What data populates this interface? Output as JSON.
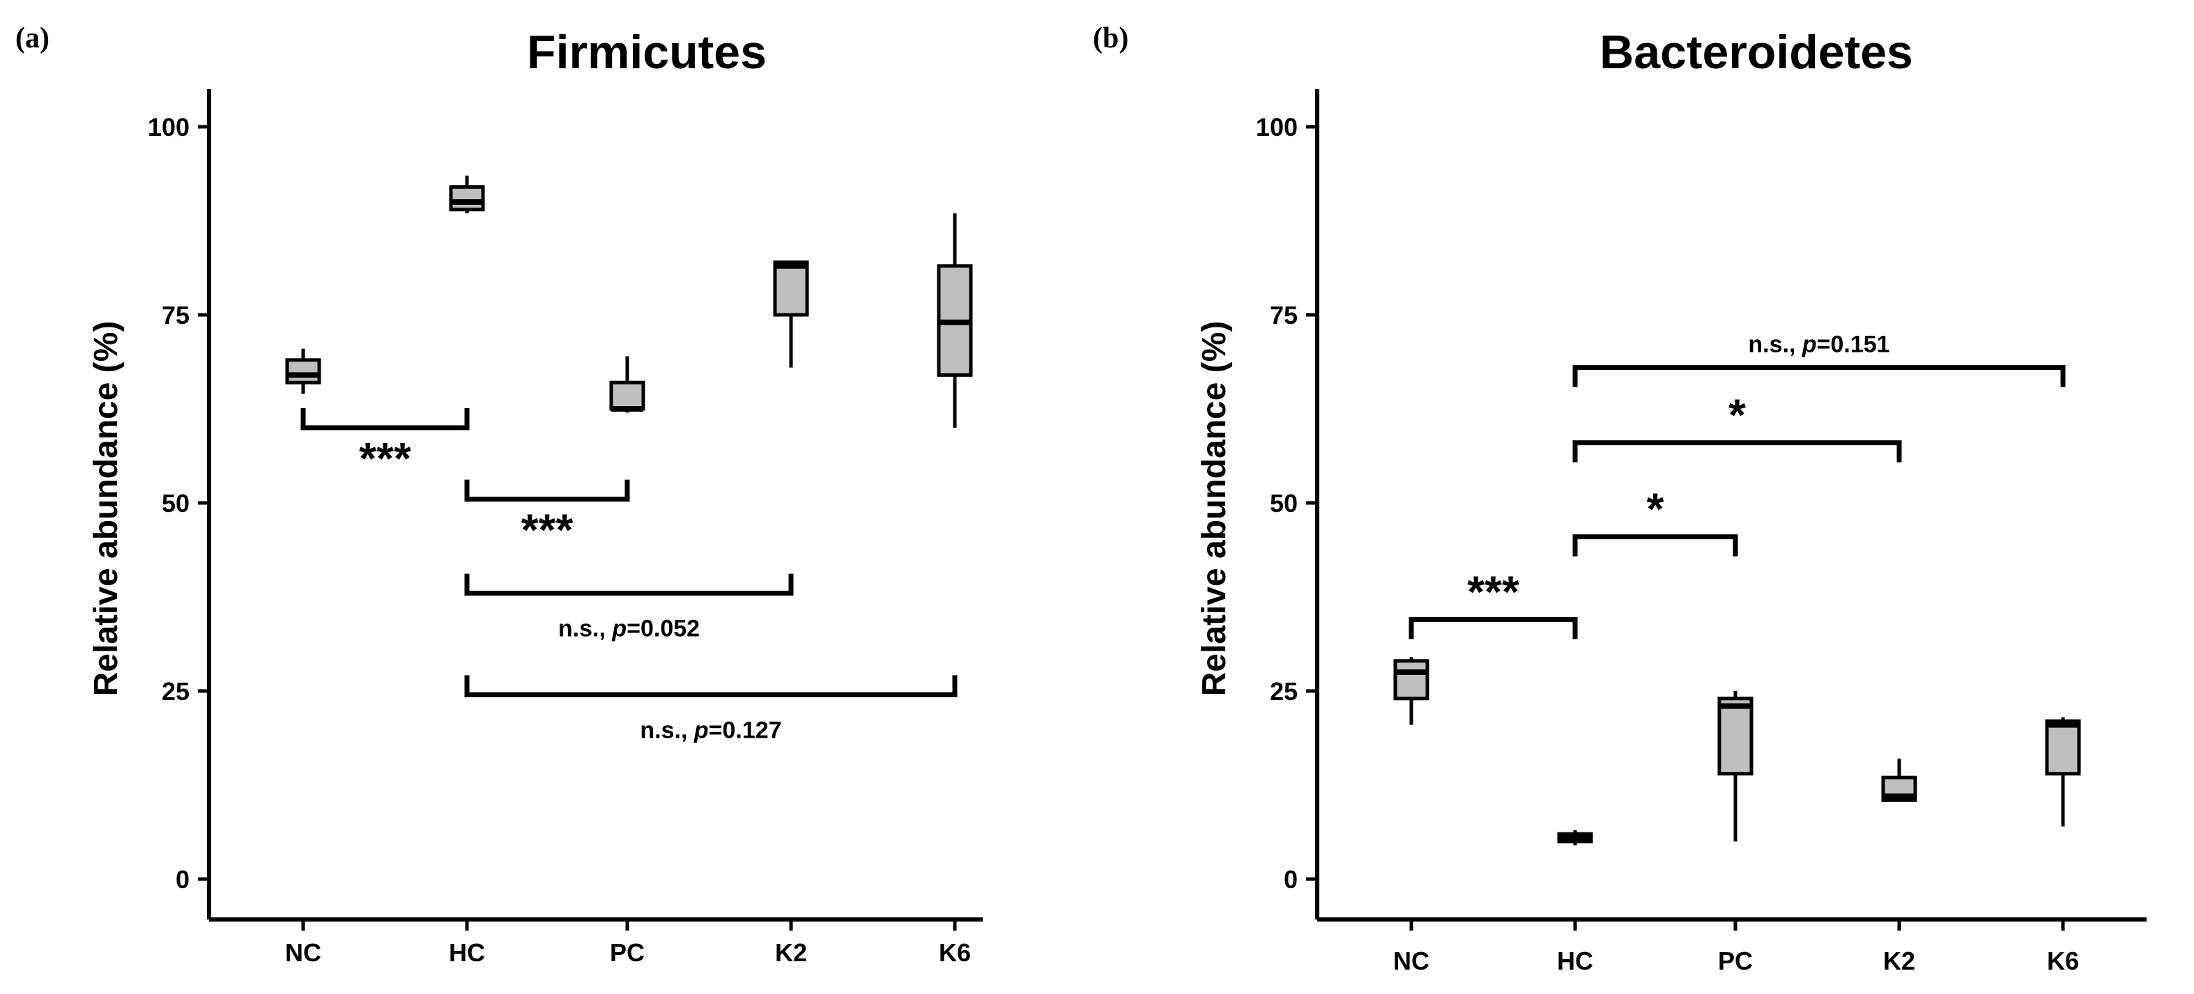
{
  "chart_data": [
    {
      "type": "box",
      "panel_label": "(a)",
      "title": "Firmicutes",
      "xlabel": "",
      "ylabel": "Relative abundance (%)",
      "ylim": [
        -5,
        105
      ],
      "yticks": [
        0,
        25,
        50,
        75,
        100
      ],
      "categories": [
        "NC",
        "HC",
        "PC",
        "K2",
        "K6"
      ],
      "boxes": [
        {
          "min": 64.5,
          "q1": 66,
          "median": 67,
          "q3": 69,
          "max": 70.5
        },
        {
          "min": 88.5,
          "q1": 89,
          "median": 90,
          "q3": 92,
          "max": 93.5
        },
        {
          "min": 62,
          "q1": 62.5,
          "median": 62.5,
          "q3": 66,
          "max": 69.5
        },
        {
          "min": 68,
          "q1": 75,
          "median": 81.5,
          "q3": 82,
          "max": 82
        },
        {
          "min": 60,
          "q1": 67,
          "median": 74,
          "q3": 81.5,
          "max": 88.5
        }
      ],
      "comparisons": [
        {
          "from": 0,
          "to": 1,
          "y": 60,
          "label": "***",
          "text": "***",
          "label_pos": "below"
        },
        {
          "from": 1,
          "to": 2,
          "y": 50.5,
          "label": "***",
          "text": "***",
          "label_pos": "below"
        },
        {
          "from": 1,
          "to": 3,
          "y": 38,
          "label": "n.s., p=0.052",
          "text": "n.s., ",
          "p_text": "p",
          "p_value": "=0.052",
          "label_pos": "below"
        },
        {
          "from": 1,
          "to": 4,
          "y": 24.5,
          "label": "n.s., p=0.127",
          "text": "n.s., ",
          "p_text": "p",
          "p_value": "=0.127",
          "label_pos": "below"
        }
      ]
    },
    {
      "type": "box",
      "panel_label": "(b)",
      "title": "Bacteroidetes",
      "xlabel": "",
      "ylabel": "Relative abundance (%)",
      "ylim": [
        -5,
        105
      ],
      "yticks": [
        0,
        25,
        50,
        75,
        100
      ],
      "categories": [
        "NC",
        "HC",
        "PC",
        "K2",
        "K6"
      ],
      "boxes": [
        {
          "min": 20.5,
          "q1": 24,
          "median": 27.5,
          "q3": 29,
          "max": 29.5
        },
        {
          "min": 4.5,
          "q1": 5,
          "median": 5.5,
          "q3": 6,
          "max": 6.5
        },
        {
          "min": 5,
          "q1": 14,
          "median": 23,
          "q3": 24,
          "max": 25
        },
        {
          "min": 10.5,
          "q1": 10.5,
          "median": 11,
          "q3": 13.5,
          "max": 16
        },
        {
          "min": 7,
          "q1": 14,
          "median": 20.5,
          "q3": 21,
          "max": 21.5
        }
      ],
      "comparisons": [
        {
          "from": 0,
          "to": 1,
          "y": 34.5,
          "label": "***",
          "text": "***",
          "label_pos": "above"
        },
        {
          "from": 1,
          "to": 2,
          "y": 45.5,
          "label": "*",
          "text": "*",
          "label_pos": "above"
        },
        {
          "from": 1,
          "to": 3,
          "y": 58,
          "label": "*",
          "text": "*",
          "label_pos": "above"
        },
        {
          "from": 1,
          "to": 4,
          "y": 68,
          "label": "n.s., p=0.151",
          "text": "n.s., ",
          "p_text": "p",
          "p_value": "=0.151",
          "label_pos": "above"
        }
      ]
    }
  ]
}
